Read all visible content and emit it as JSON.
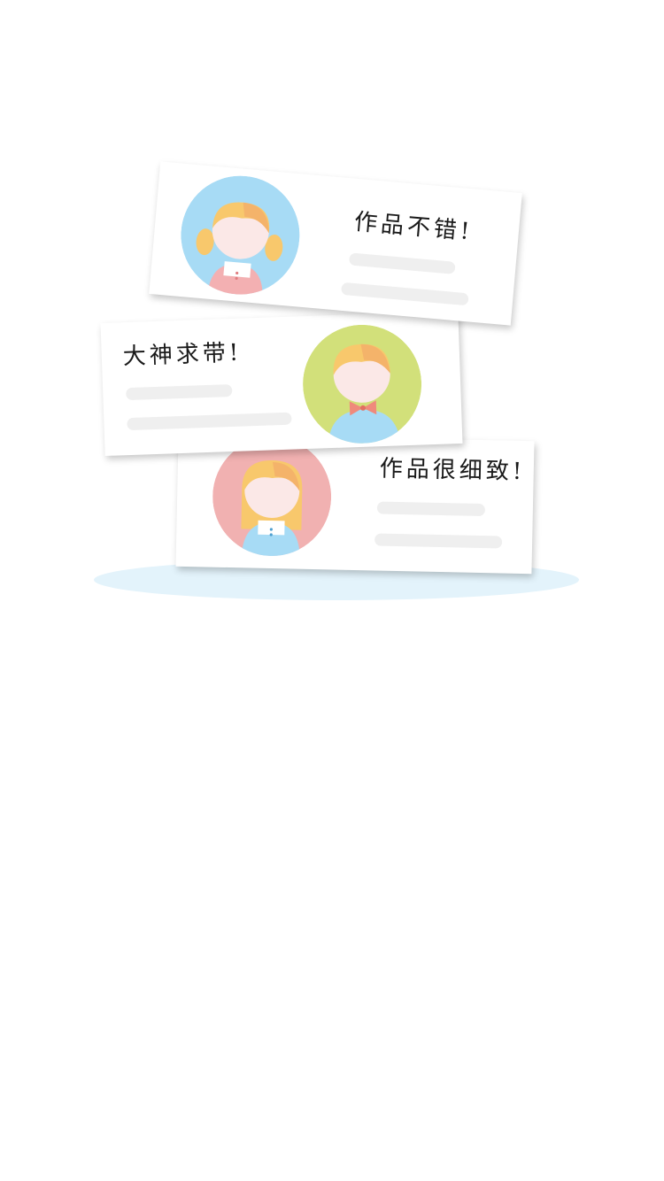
{
  "colors": {
    "page_background": "#ffffff",
    "card_background": "#ffffff",
    "placeholder_line": "#efefef",
    "ground_shadow": "#e3f3fb",
    "avatar_blue": "#a7dbf5",
    "avatar_green": "#d2e07a",
    "avatar_pink": "#f1b1b1",
    "hair": "#f8c86c",
    "skin": "#fbe8e7"
  },
  "cards": [
    {
      "comment": "作品不错!",
      "avatar_icon": "girl-pigtails-avatar-icon",
      "avatar_color": "#a7dbf5"
    },
    {
      "comment": "大神求带!",
      "avatar_icon": "boy-bowtie-avatar-icon",
      "avatar_color": "#d2e07a"
    },
    {
      "comment": "作品很细致!",
      "avatar_icon": "girl-long-hair-avatar-icon",
      "avatar_color": "#f1b1b1"
    }
  ]
}
